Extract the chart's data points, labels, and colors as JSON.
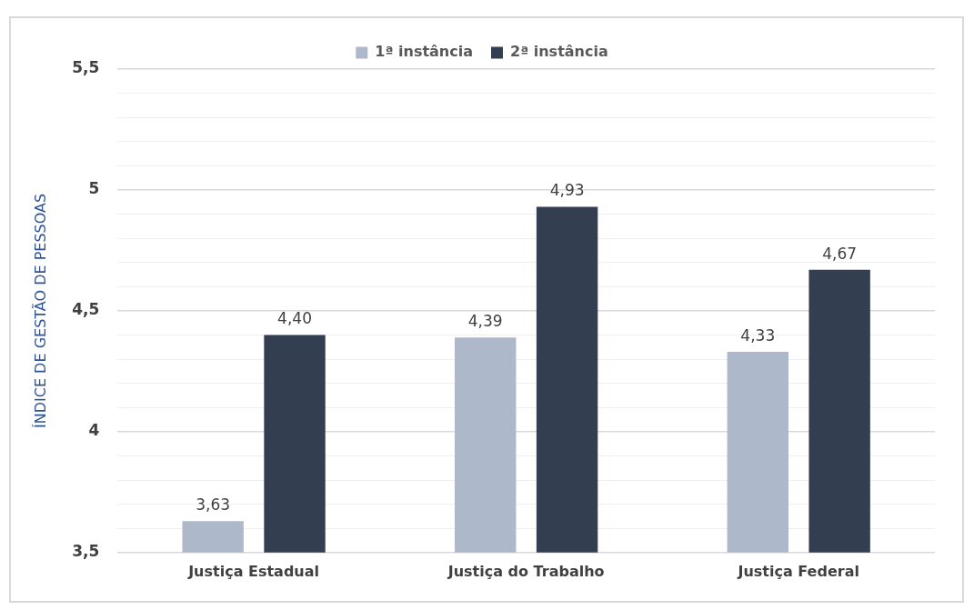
{
  "chart_data": {
    "type": "bar",
    "ylabel": "ÍNDICE DE GESTÃO DE PESSOAS",
    "categories": [
      "Justiça Estadual",
      "Justiça do Trabalho",
      "Justiça Federal"
    ],
    "series": [
      {
        "name": "1ª instância",
        "color": "#adb9ca",
        "values": [
          3.63,
          4.39,
          4.33
        ],
        "value_labels": [
          "3,63",
          "4,39",
          "4,33"
        ]
      },
      {
        "name": "2ª instância",
        "color": "#333f50",
        "values": [
          4.4,
          4.93,
          4.67
        ],
        "value_labels": [
          "4,40",
          "4,93",
          "4,67"
        ]
      }
    ],
    "ylim": [
      3.5,
      5.5
    ],
    "yticks": [
      {
        "value": 3.5,
        "label": "3,5"
      },
      {
        "value": 3.6,
        "label": null
      },
      {
        "value": 3.7,
        "label": null
      },
      {
        "value": 3.8,
        "label": null
      },
      {
        "value": 3.9,
        "label": null
      },
      4,
      {
        "value": 4.1,
        "label": null
      },
      {
        "value": 4.2,
        "label": null
      },
      {
        "value": 4.3,
        "label": null
      },
      {
        "value": 4.4,
        "label": null
      },
      {
        "value": 4.5,
        "label": "4,5"
      },
      {
        "value": 4.6,
        "label": null
      },
      {
        "value": 4.7,
        "label": null
      },
      {
        "value": 4.8,
        "label": null
      },
      {
        "value": 4.9,
        "label": null
      },
      5,
      {
        "value": 5.1,
        "label": null
      },
      {
        "value": 5.2,
        "label": null
      },
      {
        "value": 5.3,
        "label": null
      },
      {
        "value": 5.4,
        "label": null
      },
      {
        "value": 5.5,
        "label": "5,5"
      }
    ],
    "grid": "y",
    "legend": "top"
  }
}
